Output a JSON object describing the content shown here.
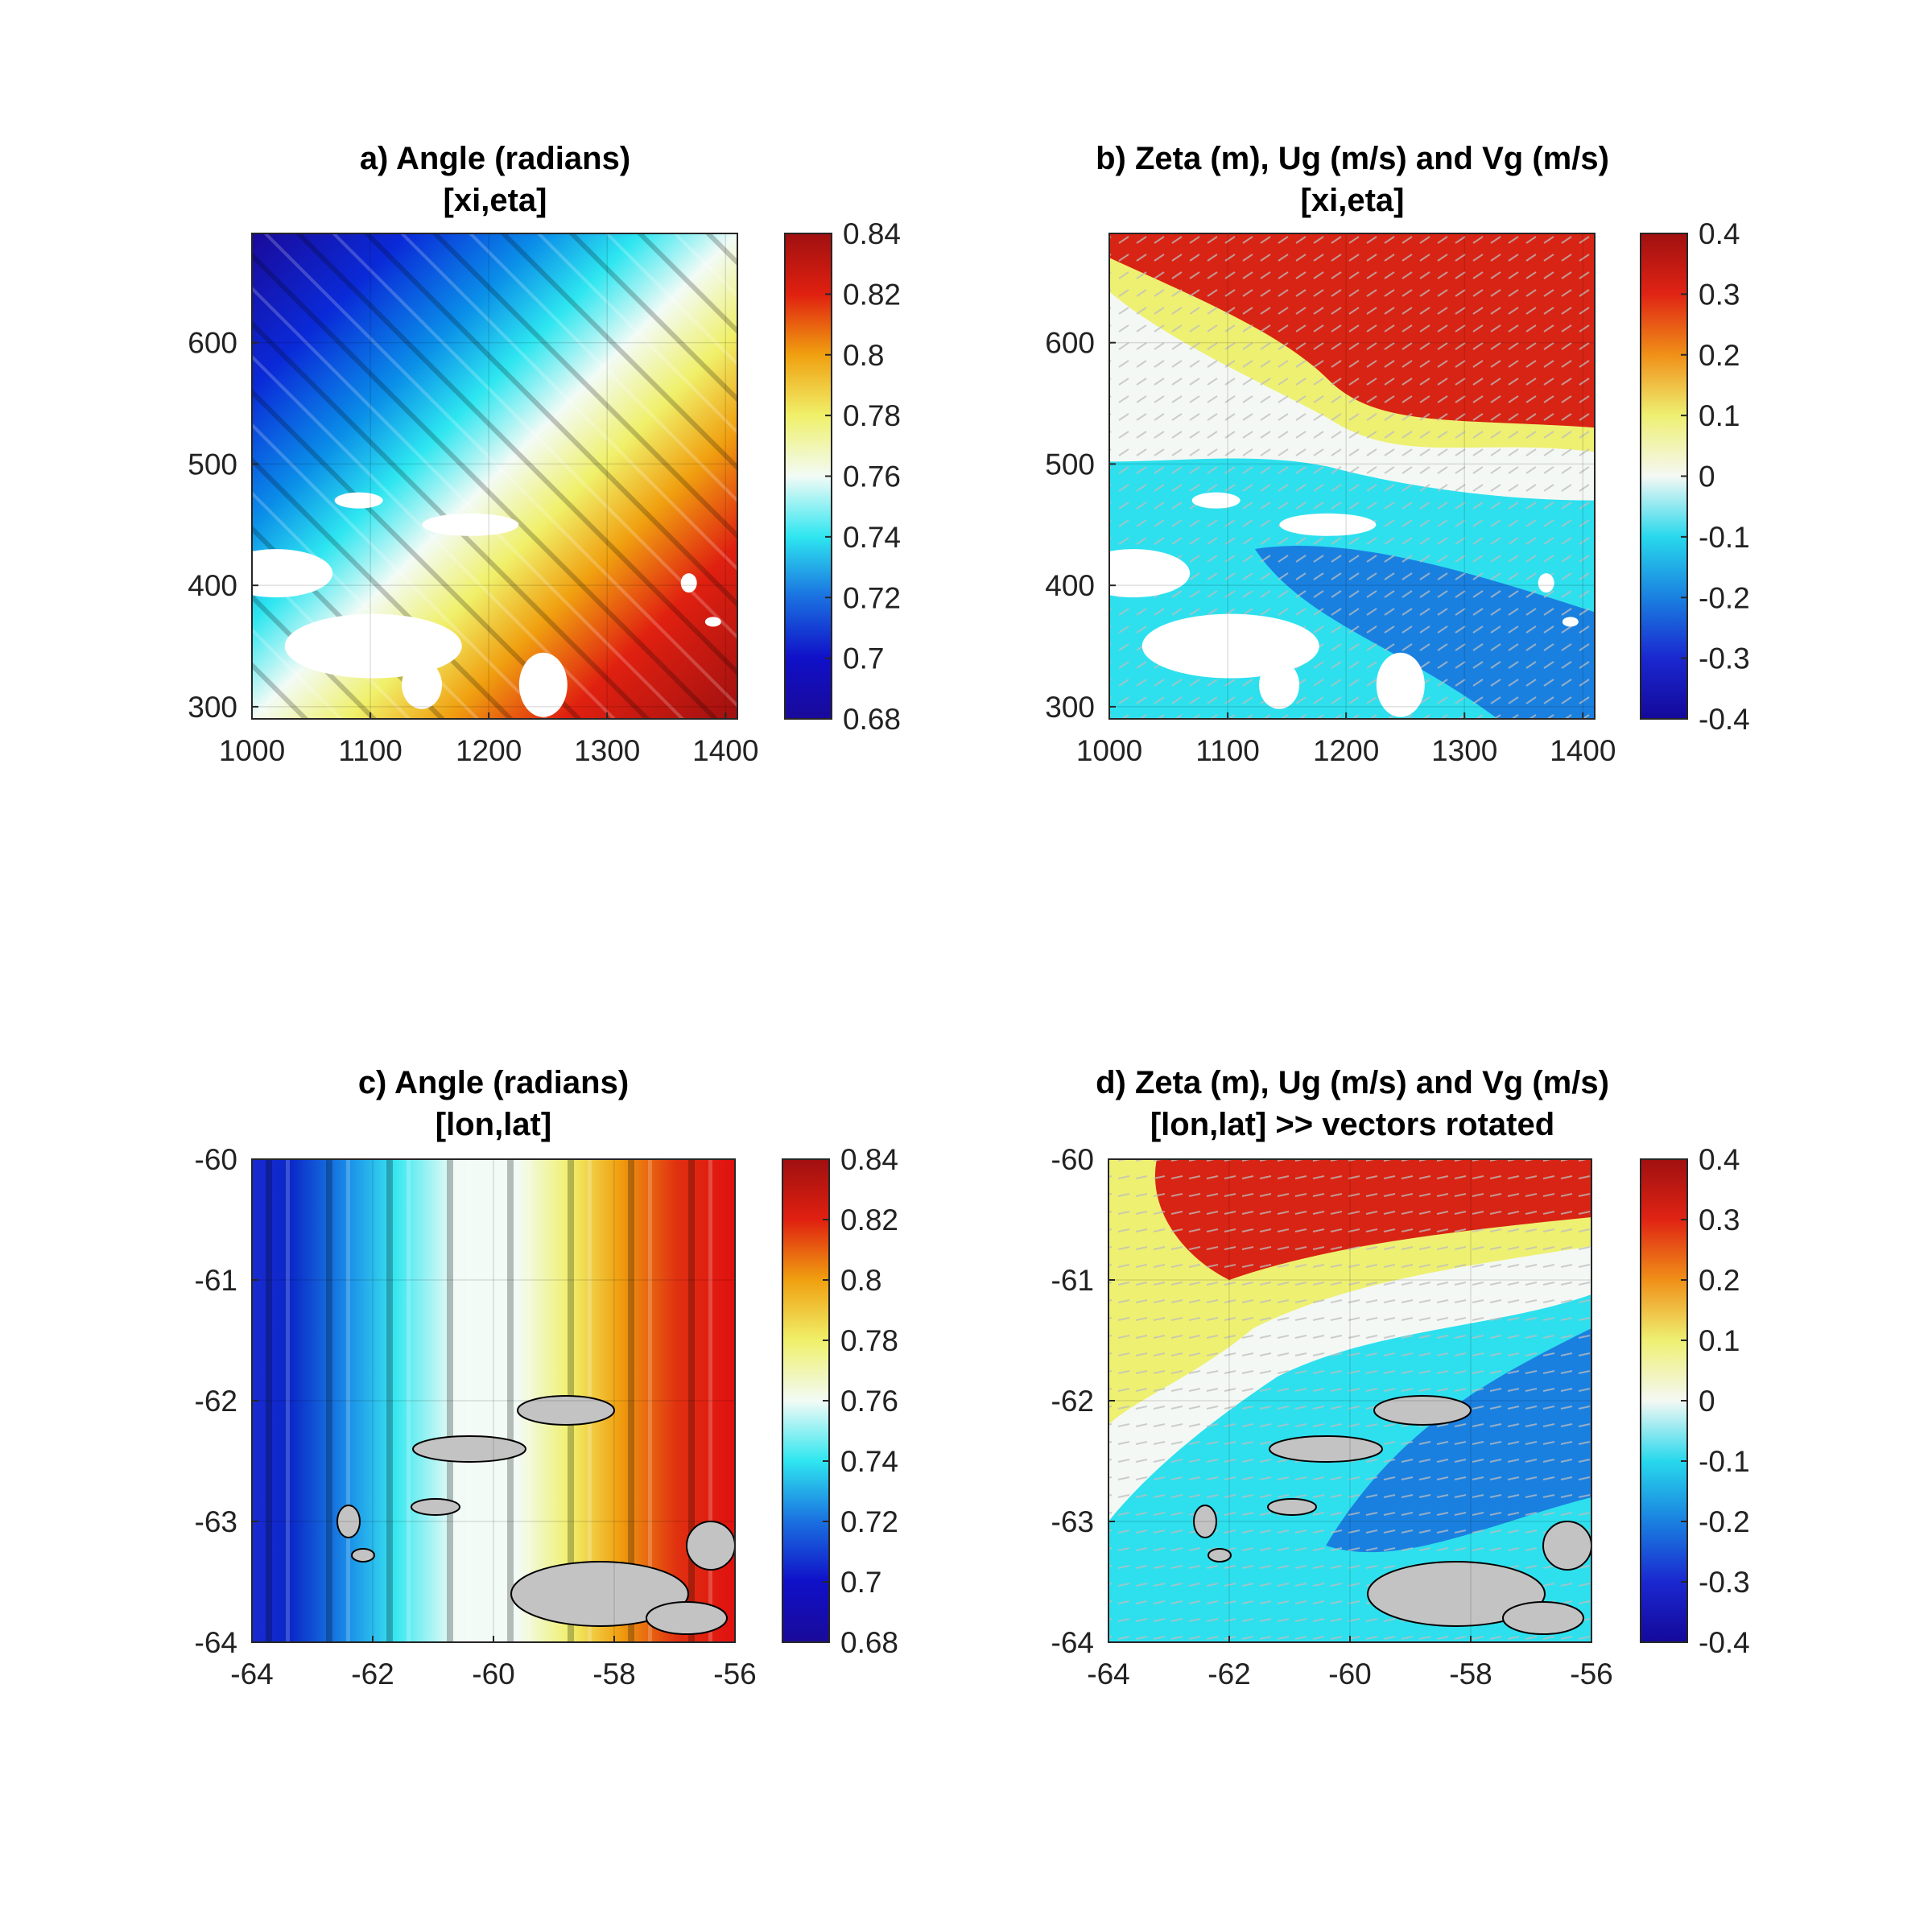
{
  "chart_data": [
    {
      "type": "heatmap",
      "panel": "a",
      "title_lines": [
        "a) Angle (radians)",
        "[xi,eta]"
      ],
      "xlabel": "",
      "ylabel": "",
      "xlim": [
        1000,
        1410
      ],
      "ylim": [
        290,
        690
      ],
      "xticks": [
        "1000",
        "1100",
        "1200",
        "1300",
        "1400"
      ],
      "yticks": [
        "300",
        "400",
        "500",
        "600"
      ],
      "colorbar": {
        "min": 0.68,
        "max": 0.84,
        "ticks": [
          "0.68",
          "0.7",
          "0.72",
          "0.74",
          "0.76",
          "0.78",
          "0.8",
          "0.82",
          "0.84"
        ]
      },
      "field": "diagonal gradient of angle, increasing toward lower-right",
      "grid": true
    },
    {
      "type": "heatmap",
      "panel": "b",
      "title_lines": [
        "b) Zeta (m), Ug (m/s) and Vg (m/s)",
        "[xi,eta]"
      ],
      "xlabel": "",
      "ylabel": "",
      "xlim": [
        1000,
        1410
      ],
      "ylim": [
        290,
        690
      ],
      "xticks": [
        "1000",
        "1100",
        "1200",
        "1300",
        "1400"
      ],
      "yticks": [
        "300",
        "400",
        "500",
        "600"
      ],
      "colorbar": {
        "min": -0.4,
        "max": 0.4,
        "ticks": [
          "0.4",
          "0.3",
          "0.2",
          "0.1",
          "0",
          "-0.1",
          "-0.2",
          "-0.3",
          "-0.4"
        ]
      },
      "field": "sea surface height with geostrophic velocity vectors",
      "grid": true
    },
    {
      "type": "heatmap",
      "panel": "c",
      "title_lines": [
        "c) Angle (radians)",
        "[lon,lat]"
      ],
      "xlabel": "",
      "ylabel": "",
      "xlim": [
        -64,
        -56
      ],
      "ylim": [
        -64,
        -60
      ],
      "xticks": [
        "-64",
        "-62",
        "-60",
        "-58",
        "-56"
      ],
      "yticks": [
        "-60",
        "-61",
        "-62",
        "-63",
        "-64"
      ],
      "colorbar": {
        "min": 0.68,
        "max": 0.84,
        "ticks": [
          "0.68",
          "0.7",
          "0.72",
          "0.74",
          "0.76",
          "0.78",
          "0.8",
          "0.82",
          "0.84"
        ]
      },
      "field": "angle varying with longitude only",
      "grid": true
    },
    {
      "type": "heatmap",
      "panel": "d",
      "title_lines": [
        "d) Zeta (m), Ug (m/s) and Vg (m/s)",
        "[lon,lat] >> vectors rotated"
      ],
      "xlabel": "",
      "ylabel": "",
      "xlim": [
        -64,
        -56
      ],
      "ylim": [
        -64,
        -60
      ],
      "xticks": [
        "-64",
        "-62",
        "-60",
        "-58",
        "-56"
      ],
      "yticks": [
        "-60",
        "-61",
        "-62",
        "-63",
        "-64"
      ],
      "colorbar": {
        "min": -0.4,
        "max": 0.4,
        "ticks": [
          "0.4",
          "0.3",
          "0.2",
          "0.1",
          "0",
          "-0.1",
          "-0.2",
          "-0.3",
          "-0.4"
        ]
      },
      "field": "sea surface height with rotated geostrophic velocity vectors",
      "grid": true
    }
  ],
  "colors": {
    "angle_scale": [
      "#1a0a9a",
      "#0a2ad8",
      "#0a8ee8",
      "#2ee6f0",
      "#f2fbf6",
      "#f0f06a",
      "#f0a010",
      "#e02010",
      "#a01010"
    ],
    "zeta_scale": [
      "#14089a",
      "#1a38d8",
      "#1a8ce0",
      "#28d8ec",
      "#f4f8f4",
      "#eef072",
      "#f09018",
      "#e02414",
      "#a01010"
    ],
    "land": "#c3c3c3",
    "vector": "#bdbdbd"
  }
}
